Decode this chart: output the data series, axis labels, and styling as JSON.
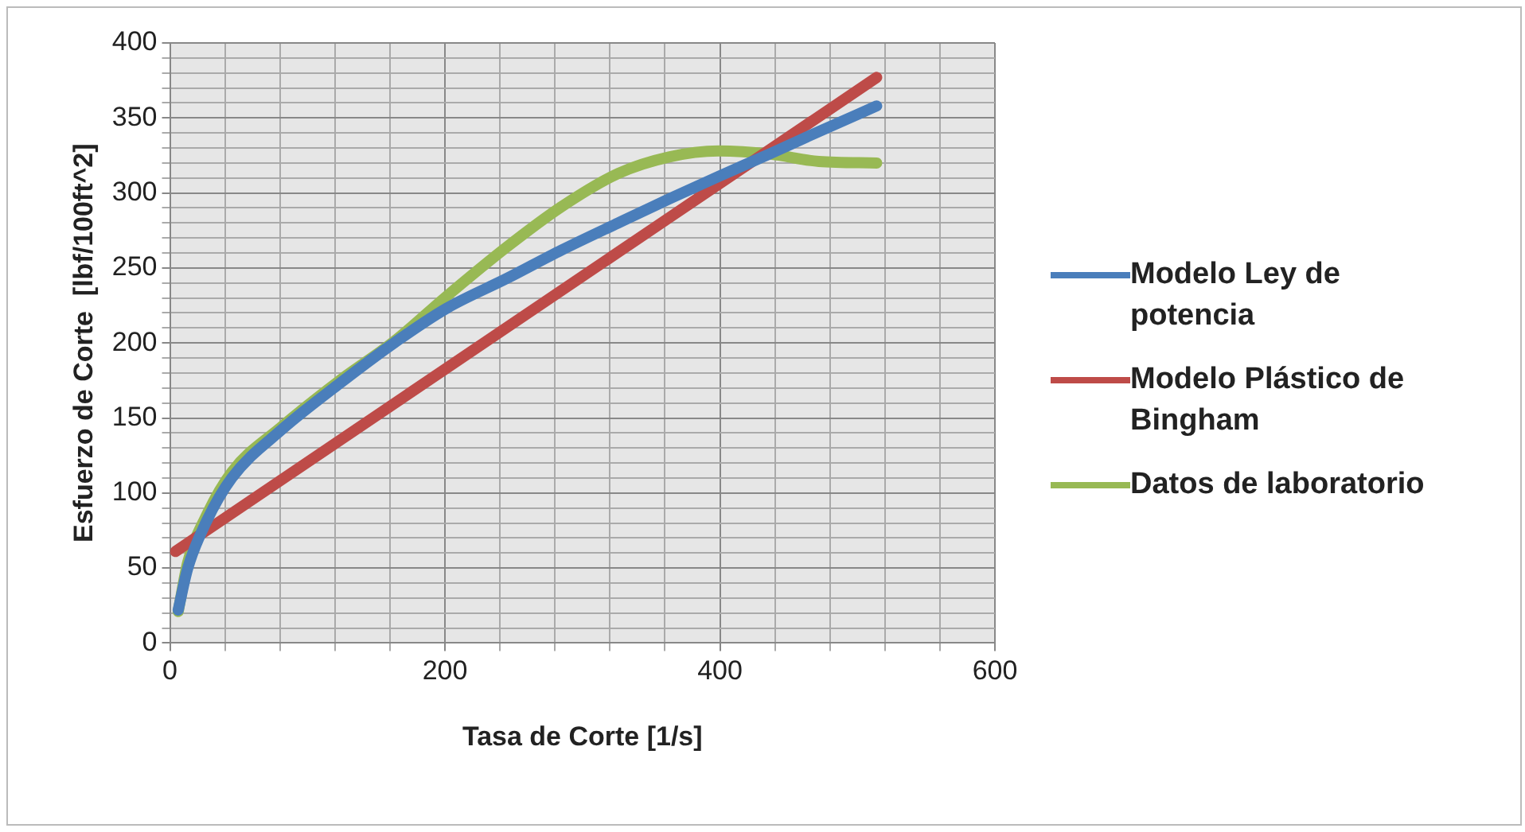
{
  "chart_data": {
    "type": "line",
    "xlabel": "Tasa de Corte [1/s]",
    "ylabel": "Esfuerzo de Corte  [lbf/100ft^2]",
    "xlim": [
      0,
      600
    ],
    "ylim": [
      0,
      400
    ],
    "xticks": [
      0,
      {
        "value": 40,
        "label": null
      },
      {
        "value": 80,
        "label": null
      },
      {
        "value": 120,
        "label": null
      },
      {
        "value": 160,
        "label": null
      },
      200,
      {
        "value": 240,
        "label": null
      },
      {
        "value": 280,
        "label": null
      },
      {
        "value": 320,
        "label": null
      },
      {
        "value": 360,
        "label": null
      },
      400,
      {
        "value": 440,
        "label": null
      },
      {
        "value": 480,
        "label": null
      },
      {
        "value": 520,
        "label": null
      },
      {
        "value": 560,
        "label": null
      },
      600
    ],
    "yticks": [
      0,
      {
        "value": 10,
        "label": null
      },
      {
        "value": 20,
        "label": null
      },
      {
        "value": 30,
        "label": null
      },
      {
        "value": 40,
        "label": null
      },
      50,
      {
        "value": 60,
        "label": null
      },
      {
        "value": 70,
        "label": null
      },
      {
        "value": 80,
        "label": null
      },
      {
        "value": 90,
        "label": null
      },
      100,
      {
        "value": 110,
        "label": null
      },
      {
        "value": 120,
        "label": null
      },
      {
        "value": 130,
        "label": null
      },
      {
        "value": 140,
        "label": null
      },
      150,
      {
        "value": 160,
        "label": null
      },
      {
        "value": 170,
        "label": null
      },
      {
        "value": 180,
        "label": null
      },
      {
        "value": 190,
        "label": null
      },
      200,
      {
        "value": 210,
        "label": null
      },
      {
        "value": 220,
        "label": null
      },
      {
        "value": 230,
        "label": null
      },
      {
        "value": 240,
        "label": null
      },
      250,
      {
        "value": 260,
        "label": null
      },
      {
        "value": 270,
        "label": null
      },
      {
        "value": 280,
        "label": null
      },
      {
        "value": 290,
        "label": null
      },
      300,
      {
        "value": 310,
        "label": null
      },
      {
        "value": 320,
        "label": null
      },
      {
        "value": 330,
        "label": null
      },
      {
        "value": 340,
        "label": null
      },
      350,
      {
        "value": 360,
        "label": null
      },
      {
        "value": 370,
        "label": null
      },
      {
        "value": 380,
        "label": null
      },
      {
        "value": 390,
        "label": null
      },
      400
    ],
    "grid": true,
    "legend": "right",
    "marker": "none",
    "line_style": "solid",
    "series": [
      {
        "name": "Modelo Ley de potencia",
        "color": "#4a7ebb",
        "x": [
          6,
          13,
          26,
          45,
          81,
          122,
          163,
          201,
          245,
          285,
          326,
          363,
          399,
          436,
          472,
          514
        ],
        "values": [
          22,
          50,
          80,
          110,
          142,
          172,
          200,
          223,
          243,
          262,
          280,
          296,
          311,
          326,
          341,
          358
        ]
      },
      {
        "name": "Modelo Plástico de Bingham",
        "color": "#be4b48",
        "x": [
          4,
          514
        ],
        "values": [
          61,
          377
        ]
      },
      {
        "name": "Datos de laboratorio",
        "color": "#98b954",
        "x": [
          6,
          13,
          26,
          45,
          81,
          122,
          163,
          201,
          245,
          285,
          326,
          363,
          399,
          436,
          472,
          514
        ],
        "values": [
          21,
          54,
          84,
          114,
          144,
          174,
          201,
          231,
          264,
          291,
          313,
          324,
          328,
          326,
          321,
          320
        ]
      }
    ]
  }
}
